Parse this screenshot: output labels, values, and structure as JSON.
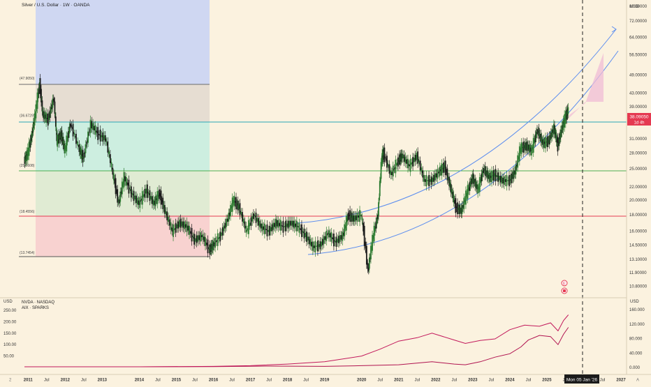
{
  "header": {
    "symbol_title": "Silver / U.S. Dollar · 1W · OANDA"
  },
  "sub_header": {
    "line1": "NVDA · NASDAQ",
    "line2": "AIX · SPARKS"
  },
  "axis": {
    "currency_top": "USD",
    "currency_bottom_right": "USD",
    "currency_bottom_left": "USD",
    "last_price": "38.09050",
    "countdown": "1d 4h",
    "crosshair_date": "Mon 05 Jan '26",
    "corner_left": "2",
    "corner_right": "A"
  },
  "fib_labels": [
    {
      "price": 47.9,
      "text": "(47.9050)"
    },
    {
      "price": 36.67,
      "text": "(36.6729)"
    },
    {
      "price": 25.66,
      "text": "(25.6608)"
    },
    {
      "price": 18.46,
      "text": "(18.4556)"
    },
    {
      "price": 13.75,
      "text": "(13.7454)"
    }
  ],
  "colors": {
    "background": "#fbf2df",
    "candle_up": "#2e7d32",
    "candle_down": "#1b1b1b",
    "fib_zone_blue": "#c9d2f2",
    "fib_zone_grey": "#e6dcd0",
    "fib_zone_teal": "#c8eee0",
    "fib_zone_green": "#e0ecd2",
    "fib_zone_red": "#f8cfcf",
    "hline_teal": "#2aa7b5",
    "hline_green": "#4caf50",
    "hline_red": "#e53950",
    "channel": "#5b8def",
    "projection_fill": "#f0bcd6",
    "nvda_line": "#c2185b",
    "aix_line": "#c2185b",
    "price_badge": "#e53950"
  },
  "chart_data": [
    {
      "type": "line",
      "title": "Silver / U.S. Dollar · 1W · OANDA",
      "xlabel": "",
      "ylabel": "USD",
      "scale": "log",
      "x_ticks": [
        "2011",
        "Jul",
        "2012",
        "Jul",
        "2013",
        "2014",
        "Jul",
        "2015",
        "Jul",
        "2016",
        "Jul",
        "2017",
        "Jul",
        "2018",
        "Jul",
        "2019",
        "2020",
        "Jul",
        "2021",
        "Jul",
        "2022",
        "Jul",
        "2023",
        "Jul",
        "2024",
        "Jul",
        "2025",
        "Jul",
        "Mon 05 Jan '26",
        "Jul",
        "2027"
      ],
      "y_ticks": [
        10.8,
        11.9,
        13.1,
        14.5,
        16.0,
        18.0,
        20.0,
        22.0,
        25.0,
        28.0,
        31.0,
        35.0,
        39.0,
        43.0,
        49.0,
        56.5,
        64.0,
        72.0,
        80.0
      ],
      "y_tick_labels": [
        "10.80000",
        "11.90000",
        "13.10000",
        "14.50000",
        "16.00000",
        "18.00000",
        "20.00000",
        "22.00000",
        "25.00000",
        "28.00000",
        "31.00000",
        "35.00000",
        "39.00000",
        "43.00000",
        "49.00000",
        "56.50000",
        "64.00000",
        "72.00000",
        "80.00000"
      ],
      "ylim": [
        10.2,
        82
      ],
      "series": [],
      "close_points": [
        {
          "x": 2010.9,
          "y": 26.5
        },
        {
          "x": 2011.0,
          "y": 28.0
        },
        {
          "x": 2011.1,
          "y": 31.5
        },
        {
          "x": 2011.2,
          "y": 37.0
        },
        {
          "x": 2011.32,
          "y": 46.0
        },
        {
          "x": 2011.4,
          "y": 37.0
        },
        {
          "x": 2011.55,
          "y": 35.5
        },
        {
          "x": 2011.7,
          "y": 41.5
        },
        {
          "x": 2011.78,
          "y": 30.5
        },
        {
          "x": 2011.9,
          "y": 32.0
        },
        {
          "x": 2012.0,
          "y": 28.5
        },
        {
          "x": 2012.15,
          "y": 34.5
        },
        {
          "x": 2012.4,
          "y": 28.5
        },
        {
          "x": 2012.5,
          "y": 27.0
        },
        {
          "x": 2012.7,
          "y": 34.5
        },
        {
          "x": 2012.9,
          "y": 32.0
        },
        {
          "x": 2013.1,
          "y": 31.0
        },
        {
          "x": 2013.3,
          "y": 24.0
        },
        {
          "x": 2013.45,
          "y": 19.5
        },
        {
          "x": 2013.6,
          "y": 23.5
        },
        {
          "x": 2013.8,
          "y": 21.0
        },
        {
          "x": 2014.0,
          "y": 19.5
        },
        {
          "x": 2014.2,
          "y": 21.5
        },
        {
          "x": 2014.4,
          "y": 19.5
        },
        {
          "x": 2014.55,
          "y": 21.0
        },
        {
          "x": 2014.7,
          "y": 18.5
        },
        {
          "x": 2014.9,
          "y": 16.0
        },
        {
          "x": 2015.1,
          "y": 17.0
        },
        {
          "x": 2015.3,
          "y": 16.5
        },
        {
          "x": 2015.5,
          "y": 15.0
        },
        {
          "x": 2015.7,
          "y": 15.5
        },
        {
          "x": 2015.9,
          "y": 14.0
        },
        {
          "x": 2016.0,
          "y": 14.5
        },
        {
          "x": 2016.2,
          "y": 15.5
        },
        {
          "x": 2016.4,
          "y": 17.5
        },
        {
          "x": 2016.55,
          "y": 20.0
        },
        {
          "x": 2016.7,
          "y": 19.0
        },
        {
          "x": 2016.9,
          "y": 16.0
        },
        {
          "x": 2017.1,
          "y": 18.0
        },
        {
          "x": 2017.3,
          "y": 16.5
        },
        {
          "x": 2017.5,
          "y": 16.0
        },
        {
          "x": 2017.7,
          "y": 17.0
        },
        {
          "x": 2017.9,
          "y": 16.5
        },
        {
          "x": 2018.1,
          "y": 17.0
        },
        {
          "x": 2018.3,
          "y": 16.5
        },
        {
          "x": 2018.5,
          "y": 15.5
        },
        {
          "x": 2018.7,
          "y": 14.3
        },
        {
          "x": 2018.9,
          "y": 14.5
        },
        {
          "x": 2019.1,
          "y": 15.8
        },
        {
          "x": 2019.3,
          "y": 14.8
        },
        {
          "x": 2019.5,
          "y": 15.5
        },
        {
          "x": 2019.65,
          "y": 18.0
        },
        {
          "x": 2019.8,
          "y": 17.5
        },
        {
          "x": 2020.0,
          "y": 18.0
        },
        {
          "x": 2020.18,
          "y": 12.0
        },
        {
          "x": 2020.3,
          "y": 15.0
        },
        {
          "x": 2020.45,
          "y": 18.0
        },
        {
          "x": 2020.55,
          "y": 27.0
        },
        {
          "x": 2020.6,
          "y": 28.0
        },
        {
          "x": 2020.8,
          "y": 24.0
        },
        {
          "x": 2021.0,
          "y": 26.5
        },
        {
          "x": 2021.1,
          "y": 27.5
        },
        {
          "x": 2021.3,
          "y": 25.5
        },
        {
          "x": 2021.5,
          "y": 27.5
        },
        {
          "x": 2021.7,
          "y": 23.0
        },
        {
          "x": 2021.9,
          "y": 23.0
        },
        {
          "x": 2022.1,
          "y": 24.5
        },
        {
          "x": 2022.25,
          "y": 25.5
        },
        {
          "x": 2022.4,
          "y": 22.0
        },
        {
          "x": 2022.55,
          "y": 19.0
        },
        {
          "x": 2022.7,
          "y": 18.5
        },
        {
          "x": 2022.85,
          "y": 21.0
        },
        {
          "x": 2023.0,
          "y": 23.5
        },
        {
          "x": 2023.15,
          "y": 21.5
        },
        {
          "x": 2023.3,
          "y": 25.0
        },
        {
          "x": 2023.45,
          "y": 23.5
        },
        {
          "x": 2023.6,
          "y": 24.0
        },
        {
          "x": 2023.8,
          "y": 23.0
        },
        {
          "x": 2024.0,
          "y": 23.0
        },
        {
          "x": 2024.15,
          "y": 24.5
        },
        {
          "x": 2024.3,
          "y": 29.0
        },
        {
          "x": 2024.45,
          "y": 29.5
        },
        {
          "x": 2024.6,
          "y": 28.5
        },
        {
          "x": 2024.75,
          "y": 33.0
        },
        {
          "x": 2024.9,
          "y": 30.0
        },
        {
          "x": 2025.05,
          "y": 30.5
        },
        {
          "x": 2025.2,
          "y": 33.5
        },
        {
          "x": 2025.3,
          "y": 29.5
        },
        {
          "x": 2025.4,
          "y": 33.0
        },
        {
          "x": 2025.5,
          "y": 36.0
        },
        {
          "x": 2025.58,
          "y": 38.09
        }
      ],
      "horizontal_levels": [
        47.9,
        36.67,
        25.66,
        18.46,
        13.75
      ],
      "annotations": [
        "38.09050",
        "1d 4h"
      ]
    },
    {
      "type": "line",
      "title": "",
      "xlabel": "",
      "ylabel": "USD",
      "y_ticks_left": [
        50,
        100,
        150,
        200,
        250
      ],
      "y_tick_labels_left": [
        "50.00",
        "100.00",
        "150.00",
        "200.00",
        "250.00"
      ],
      "y_ticks_right": [
        0,
        40,
        80,
        120,
        160
      ],
      "y_tick_labels_right": [
        "0.000",
        "40.000",
        "80.000",
        "120.000",
        "160.000"
      ],
      "series": [
        {
          "name": "NVDA · NASDAQ",
          "axis": "left",
          "points": [
            {
              "x": 2010.9,
              "y": 3
            },
            {
              "x": 2012.0,
              "y": 3
            },
            {
              "x": 2014.0,
              "y": 3
            },
            {
              "x": 2016.0,
              "y": 4
            },
            {
              "x": 2017.5,
              "y": 6
            },
            {
              "x": 2019.0,
              "y": 5
            },
            {
              "x": 2020.0,
              "y": 8
            },
            {
              "x": 2021.0,
              "y": 12
            },
            {
              "x": 2021.9,
              "y": 25
            },
            {
              "x": 2022.5,
              "y": 15
            },
            {
              "x": 2022.8,
              "y": 12
            },
            {
              "x": 2023.2,
              "y": 25
            },
            {
              "x": 2023.6,
              "y": 45
            },
            {
              "x": 2024.0,
              "y": 60
            },
            {
              "x": 2024.3,
              "y": 90
            },
            {
              "x": 2024.5,
              "y": 120
            },
            {
              "x": 2024.8,
              "y": 140
            },
            {
              "x": 2025.1,
              "y": 135
            },
            {
              "x": 2025.3,
              "y": 100
            },
            {
              "x": 2025.45,
              "y": 145
            },
            {
              "x": 2025.58,
              "y": 175
            }
          ]
        },
        {
          "name": "AIX · SPARKS",
          "axis": "left",
          "points": [
            {
              "x": 2010.9,
              "y": 3
            },
            {
              "x": 2014.0,
              "y": 3
            },
            {
              "x": 2016.0,
              "y": 5
            },
            {
              "x": 2017.0,
              "y": 8
            },
            {
              "x": 2018.0,
              "y": 15
            },
            {
              "x": 2019.0,
              "y": 25
            },
            {
              "x": 2020.0,
              "y": 50
            },
            {
              "x": 2020.5,
              "y": 80
            },
            {
              "x": 2021.0,
              "y": 115
            },
            {
              "x": 2021.5,
              "y": 130
            },
            {
              "x": 2021.9,
              "y": 150
            },
            {
              "x": 2022.5,
              "y": 120
            },
            {
              "x": 2022.8,
              "y": 105
            },
            {
              "x": 2023.2,
              "y": 118
            },
            {
              "x": 2023.6,
              "y": 125
            },
            {
              "x": 2024.0,
              "y": 165
            },
            {
              "x": 2024.4,
              "y": 185
            },
            {
              "x": 2024.8,
              "y": 180
            },
            {
              "x": 2025.1,
              "y": 195
            },
            {
              "x": 2025.3,
              "y": 160
            },
            {
              "x": 2025.45,
              "y": 205
            },
            {
              "x": 2025.58,
              "y": 230
            }
          ]
        }
      ]
    }
  ]
}
